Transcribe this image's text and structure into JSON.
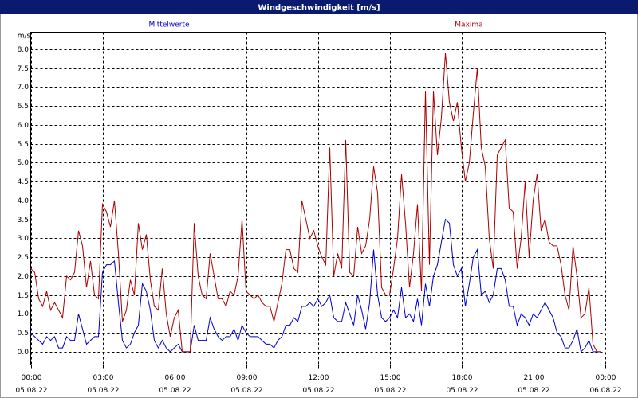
{
  "chart_data": {
    "type": "line",
    "title": "Windgeschwindigkeit [m/s]",
    "y_unit": "m/s",
    "x": [
      0,
      10,
      20,
      30,
      40,
      50,
      60,
      70,
      80,
      90,
      100,
      110,
      120,
      130,
      140,
      150,
      160,
      170,
      180,
      190,
      200,
      210,
      220,
      230,
      240,
      250,
      260,
      270,
      280,
      290,
      300,
      310,
      320,
      330,
      340,
      350,
      360,
      370,
      380,
      390,
      400,
      410,
      420,
      430,
      440,
      450,
      460,
      470,
      480,
      490,
      500,
      510,
      520,
      530,
      540,
      550,
      560,
      570,
      580,
      590,
      600,
      610,
      620,
      630,
      640,
      650,
      660,
      670,
      680,
      690,
      700,
      710,
      720,
      730,
      740,
      750,
      760,
      770,
      780,
      790,
      800,
      810,
      820,
      830,
      840,
      850,
      860,
      870,
      880,
      890,
      900,
      910,
      920,
      930,
      940,
      950,
      960,
      970,
      980,
      990,
      1000,
      1010,
      1020,
      1030,
      1040,
      1050,
      1060,
      1070,
      1080,
      1090,
      1100,
      1110,
      1120,
      1130,
      1140,
      1150,
      1160,
      1170,
      1180,
      1190,
      1200,
      1210,
      1220,
      1230,
      1240,
      1250,
      1260,
      1270,
      1280,
      1290,
      1300,
      1310,
      1320,
      1330,
      1340,
      1350,
      1360,
      1370,
      1380,
      1390,
      1400,
      1410,
      1420,
      1430
    ],
    "series": [
      {
        "name": "Mittelwerte",
        "color": "#0000cc",
        "values": [
          0.5,
          0.4,
          0.3,
          0.2,
          0.4,
          0.3,
          0.4,
          0.1,
          0.1,
          0.4,
          0.3,
          0.3,
          1.0,
          0.6,
          0.2,
          0.3,
          0.4,
          0.4,
          2.1,
          2.3,
          2.3,
          2.4,
          1.3,
          0.3,
          0.1,
          0.2,
          0.5,
          0.7,
          1.8,
          1.6,
          1.1,
          0.3,
          0.1,
          0.3,
          0.1,
          0.0,
          0.1,
          0.2,
          0.0,
          0.0,
          0.0,
          0.7,
          0.3,
          0.3,
          0.3,
          0.9,
          0.6,
          0.4,
          0.3,
          0.4,
          0.4,
          0.6,
          0.3,
          0.7,
          0.5,
          0.4,
          0.4,
          0.4,
          0.3,
          0.2,
          0.2,
          0.1,
          0.3,
          0.4,
          0.7,
          0.7,
          0.9,
          0.8,
          1.2,
          1.2,
          1.3,
          1.2,
          1.4,
          1.2,
          1.3,
          1.5,
          0.9,
          0.8,
          0.8,
          1.3,
          1.0,
          0.7,
          1.5,
          1.1,
          0.6,
          1.3,
          2.7,
          1.5,
          0.9,
          0.8,
          0.9,
          1.1,
          0.9,
          1.7,
          0.9,
          1.0,
          0.8,
          1.4,
          0.7,
          1.8,
          1.2,
          2.0,
          2.3,
          2.9,
          3.5,
          3.4,
          2.3,
          2.0,
          2.2,
          1.2,
          1.8,
          2.5,
          2.7,
          1.5,
          1.6,
          1.3,
          1.5,
          2.2,
          2.2,
          1.9,
          1.2,
          1.2,
          0.7,
          1.0,
          0.9,
          0.7,
          1.0,
          0.9,
          1.1,
          1.3,
          1.1,
          0.9,
          0.5,
          0.4,
          0.1,
          0.1,
          0.3,
          0.6,
          0.0,
          0.1,
          0.3,
          0.0,
          0.0,
          0.0
        ]
      },
      {
        "name": "Maxima",
        "color": "#aa0000",
        "values": [
          2.2,
          2.1,
          1.4,
          1.2,
          1.6,
          1.1,
          1.3,
          1.1,
          0.9,
          2.0,
          1.9,
          2.1,
          3.2,
          2.8,
          1.7,
          2.4,
          1.5,
          1.4,
          3.9,
          3.7,
          3.3,
          4.0,
          2.6,
          0.8,
          1.1,
          1.9,
          1.5,
          3.4,
          2.7,
          3.1,
          1.9,
          1.2,
          1.1,
          2.2,
          1.0,
          0.4,
          0.9,
          1.1,
          0.0,
          0.0,
          0.0,
          3.4,
          2.0,
          1.5,
          1.4,
          2.6,
          2.0,
          1.4,
          1.4,
          1.2,
          1.6,
          1.5,
          2.0,
          3.5,
          1.6,
          1.5,
          1.4,
          1.5,
          1.3,
          1.2,
          1.2,
          0.8,
          1.3,
          1.8,
          2.7,
          2.7,
          2.2,
          2.1,
          4.0,
          3.5,
          3.0,
          3.2,
          2.8,
          2.5,
          2.3,
          5.4,
          2.0,
          2.6,
          2.2,
          5.6,
          2.1,
          2.0,
          3.3,
          2.6,
          2.8,
          3.5,
          4.9,
          4.2,
          1.7,
          1.5,
          1.5,
          2.2,
          3.0,
          4.7,
          3.4,
          1.7,
          2.6,
          3.9,
          1.6,
          6.9,
          2.3,
          6.9,
          5.2,
          6.2,
          7.9,
          6.6,
          6.1,
          6.6,
          5.4,
          4.5,
          5.0,
          6.3,
          7.5,
          5.4,
          4.9,
          3.0,
          2.2,
          5.2,
          5.4,
          5.6,
          3.8,
          3.7,
          2.2,
          3.0,
          4.5,
          2.5,
          4.0,
          4.7,
          3.2,
          3.5,
          2.9,
          2.8,
          2.8,
          2.3,
          1.5,
          1.1,
          2.8,
          2.0,
          0.9,
          1.0,
          1.7,
          0.2,
          0.0,
          0.0
        ]
      }
    ],
    "xlim": [
      0,
      1440
    ],
    "xticks": [
      {
        "value": 0,
        "label": "00:00"
      },
      {
        "value": 180,
        "label": "03:00"
      },
      {
        "value": 360,
        "label": "06:00"
      },
      {
        "value": 540,
        "label": "09:00"
      },
      {
        "value": 720,
        "label": "12:00"
      },
      {
        "value": 900,
        "label": "15:00"
      },
      {
        "value": 1080,
        "label": "18:00"
      },
      {
        "value": 1260,
        "label": "21:00"
      },
      {
        "value": 1440,
        "label": "00:00"
      }
    ],
    "xtick_dates": [
      "05.08.22",
      "05.08.22",
      "05.08.22",
      "05.08.22",
      "05.08.22",
      "05.08.22",
      "05.08.22",
      "05.08.22",
      "06.08.22"
    ],
    "ylim": [
      -0.35,
      8.45
    ],
    "yticks": [
      {
        "value": 0,
        "label": "0.0"
      },
      0.5,
      {
        "value": 1,
        "label": "1.0"
      },
      1.5,
      {
        "value": 2,
        "label": "2.0"
      },
      2.5,
      {
        "value": 3,
        "label": "3.0"
      },
      3.5,
      {
        "value": 4,
        "label": "4.0"
      },
      4.5,
      {
        "value": 5,
        "label": "5.0"
      },
      5.5,
      {
        "value": 6,
        "label": "6.0"
      },
      6.5,
      {
        "value": 7,
        "label": "7.0"
      },
      7.5,
      {
        "value": 8,
        "label": "8.0"
      }
    ],
    "grid": true
  }
}
